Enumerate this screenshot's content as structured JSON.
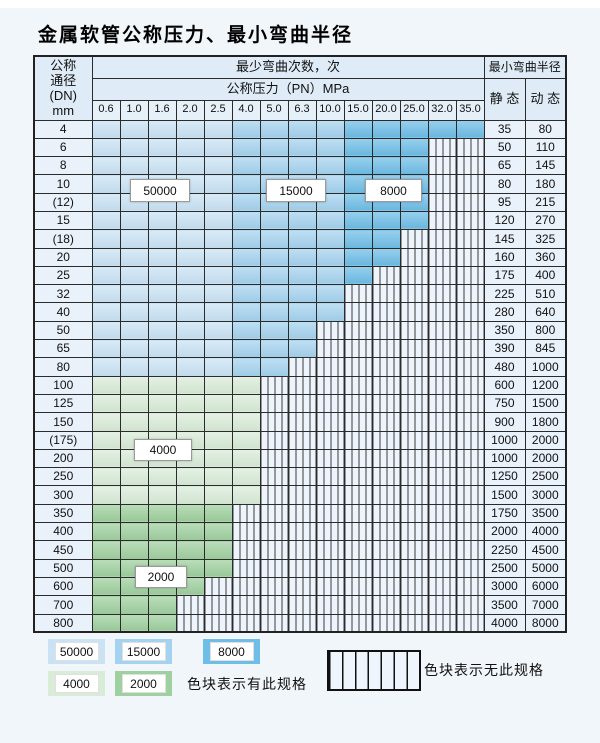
{
  "title": "金属软管公称压力、最小弯曲半径",
  "table": {
    "dn_header_lines": [
      "公称",
      "通径",
      "(DN)",
      "mm"
    ],
    "bend_times_header": "最少弯曲次数，次",
    "pressure_header": "公称压力（PN）MPa",
    "radius_header": "最小弯曲半径",
    "static_header": "静 态",
    "dynamic_header": "动 态",
    "pressure_columns": [
      "0.6",
      "1.0",
      "1.6",
      "2.0",
      "2.5",
      "4.0",
      "5.0",
      "6.3",
      "10.0",
      "15.0",
      "20.0",
      "25.0",
      "32.0",
      "35.0"
    ],
    "rows": [
      {
        "dn": "4",
        "scheme": "blue",
        "colored_through": "35.0",
        "static": "35",
        "dynamic": "80"
      },
      {
        "dn": "6",
        "scheme": "blue",
        "colored_through": "25.0",
        "static": "50",
        "dynamic": "110"
      },
      {
        "dn": "8",
        "scheme": "blue",
        "colored_through": "25.0",
        "static": "65",
        "dynamic": "145"
      },
      {
        "dn": "10",
        "scheme": "blue",
        "colored_through": "25.0",
        "static": "80",
        "dynamic": "180"
      },
      {
        "dn": "(12)",
        "scheme": "blue",
        "colored_through": "25.0",
        "static": "95",
        "dynamic": "215"
      },
      {
        "dn": "15",
        "scheme": "blue",
        "colored_through": "25.0",
        "static": "120",
        "dynamic": "270"
      },
      {
        "dn": "(18)",
        "scheme": "blue",
        "colored_through": "20.0",
        "static": "145",
        "dynamic": "325"
      },
      {
        "dn": "20",
        "scheme": "blue",
        "colored_through": "20.0",
        "static": "160",
        "dynamic": "360"
      },
      {
        "dn": "25",
        "scheme": "blue",
        "colored_through": "15.0",
        "static": "175",
        "dynamic": "400"
      },
      {
        "dn": "32",
        "scheme": "blue",
        "colored_through": "10.0",
        "static": "225",
        "dynamic": "510"
      },
      {
        "dn": "40",
        "scheme": "blue",
        "colored_through": "10.0",
        "static": "280",
        "dynamic": "640"
      },
      {
        "dn": "50",
        "scheme": "blue",
        "colored_through": "6.3",
        "static": "350",
        "dynamic": "800"
      },
      {
        "dn": "65",
        "scheme": "blue",
        "colored_through": "6.3",
        "static": "390",
        "dynamic": "845"
      },
      {
        "dn": "80",
        "scheme": "blue",
        "colored_through": "5.0",
        "static": "480",
        "dynamic": "1000"
      },
      {
        "dn": "100",
        "scheme": "green4000",
        "colored_through": "4.0",
        "static": "600",
        "dynamic": "1200"
      },
      {
        "dn": "125",
        "scheme": "green4000",
        "colored_through": "4.0",
        "static": "750",
        "dynamic": "1500"
      },
      {
        "dn": "150",
        "scheme": "green4000",
        "colored_through": "4.0",
        "static": "900",
        "dynamic": "1800"
      },
      {
        "dn": "(175)",
        "scheme": "green4000",
        "colored_through": "4.0",
        "static": "1000",
        "dynamic": "2000"
      },
      {
        "dn": "200",
        "scheme": "green4000",
        "colored_through": "4.0",
        "static": "1000",
        "dynamic": "2000"
      },
      {
        "dn": "250",
        "scheme": "green4000",
        "colored_through": "4.0",
        "static": "1250",
        "dynamic": "2500"
      },
      {
        "dn": "300",
        "scheme": "green4000",
        "colored_through": "4.0",
        "static": "1500",
        "dynamic": "3000"
      },
      {
        "dn": "350",
        "scheme": "green2000",
        "colored_through": "2.5",
        "static": "1750",
        "dynamic": "3500"
      },
      {
        "dn": "400",
        "scheme": "green2000",
        "colored_through": "2.5",
        "static": "2000",
        "dynamic": "4000"
      },
      {
        "dn": "450",
        "scheme": "green2000",
        "colored_through": "2.5",
        "static": "2250",
        "dynamic": "4500"
      },
      {
        "dn": "500",
        "scheme": "green2000",
        "colored_through": "2.5",
        "static": "2500",
        "dynamic": "5000"
      },
      {
        "dn": "600",
        "scheme": "green2000",
        "colored_through": "2.0",
        "static": "3000",
        "dynamic": "6000"
      },
      {
        "dn": "700",
        "scheme": "green2000",
        "colored_through": "1.6",
        "static": "3500",
        "dynamic": "7000"
      },
      {
        "dn": "800",
        "scheme": "green2000",
        "colored_through": "1.6",
        "static": "4000",
        "dynamic": "8000"
      }
    ],
    "zone_by_pressure": {
      "50000_zone": [
        "0.6",
        "1.0",
        "1.6",
        "2.0",
        "2.5"
      ],
      "15000_zone": [
        "4.0",
        "5.0",
        "6.3",
        "10.0"
      ],
      "8000_zone": [
        "15.0",
        "20.0",
        "25.0",
        "32.0",
        "35.0"
      ]
    }
  },
  "overlay_labels": [
    {
      "text": "50000"
    },
    {
      "text": "15000"
    },
    {
      "text": "8000"
    },
    {
      "text": "4000"
    },
    {
      "text": "2000"
    }
  ],
  "legend": {
    "swatches": [
      {
        "label": "50000",
        "color_key": "c50000"
      },
      {
        "label": "15000",
        "color_key": "c15000"
      },
      {
        "label": "8000",
        "color_key": "c8000"
      },
      {
        "label": "4000",
        "color_key": "c4000"
      },
      {
        "label": "2000",
        "color_key": "c2000"
      }
    ],
    "available_note": "色块表示有此规格",
    "unavailable_note": "色块表示无此规格"
  },
  "colors": {
    "c50000": "#c9e3f5",
    "c15000": "#a5d3ef",
    "c8000": "#6fbee7",
    "c4000": "#d9ecd8",
    "c2000": "#9fd09f"
  }
}
